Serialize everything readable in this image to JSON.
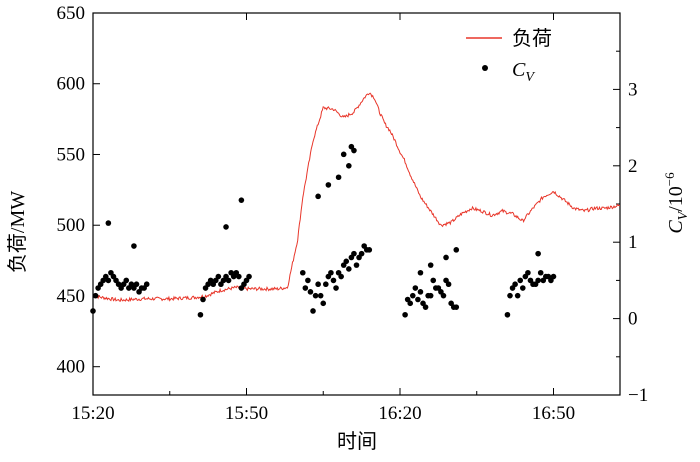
{
  "chart_data": {
    "type": "line",
    "xlabel": "时间",
    "ylabel_left": "负荷/MW",
    "ylabel_right": "C_V/10^-6",
    "ylabel_right_parts": {
      "sym": "C",
      "sub": "V",
      "rest": "/10",
      "sup": "−6"
    },
    "x_ticks": [
      "15:20",
      "15:50",
      "16:20",
      "16:50"
    ],
    "x_tick_minutes": [
      0,
      30,
      60,
      90
    ],
    "xlim_minutes": [
      0,
      103
    ],
    "ylim_left": [
      380,
      650
    ],
    "y_ticks_left": [
      400,
      450,
      500,
      550,
      600,
      650
    ],
    "ylim_right": [
      -1,
      4
    ],
    "y_ticks_right": [
      -1,
      0,
      1,
      2,
      3
    ],
    "legend": {
      "position": "top-right",
      "items": [
        {
          "label": "负荷",
          "marker": "line",
          "color": "#e8362a"
        },
        {
          "label": "C_V",
          "label_parts": {
            "sym": "C",
            "sub": "V"
          },
          "marker": "dot",
          "color": "#000000"
        }
      ]
    },
    "series": [
      {
        "name": "负荷",
        "axis": "left",
        "color": "#e8362a",
        "x_minutes": [
          0,
          5,
          10,
          15,
          20,
          22,
          25,
          28,
          30,
          33,
          36,
          38,
          40,
          41,
          43,
          45,
          47,
          49,
          51,
          53,
          54,
          55,
          56,
          57,
          58,
          59,
          60,
          61,
          62,
          64,
          66,
          68,
          70,
          72,
          74,
          76,
          78,
          80,
          82,
          84,
          86,
          88,
          90,
          92,
          94,
          96,
          98,
          100,
          103
        ],
        "values": [
          450,
          447,
          448,
          448,
          449,
          450,
          454,
          456,
          455,
          455,
          455,
          456,
          490,
          520,
          560,
          583,
          582,
          576,
          580,
          590,
          594,
          590,
          580,
          572,
          567,
          560,
          552,
          545,
          536,
          520,
          510,
          500,
          502,
          508,
          512,
          510,
          507,
          510,
          508,
          503,
          512,
          520,
          524,
          518,
          512,
          510,
          512,
          512,
          514
        ]
      },
      {
        "name": "C_V",
        "axis": "right",
        "color": "#000000",
        "marker": "dot",
        "x_minutes": [
          0,
          0.5,
          1,
          1.5,
          2,
          2.5,
          3,
          3.5,
          4,
          4.5,
          5,
          5.5,
          6,
          6.5,
          7,
          7.5,
          8,
          8.5,
          9,
          9.5,
          10,
          10.5,
          3,
          8,
          21,
          21.5,
          22,
          22.5,
          23,
          23.5,
          24,
          24.5,
          25,
          25.5,
          26,
          26.5,
          27,
          27.5,
          28,
          28.5,
          29,
          29.5,
          30,
          30.5,
          26,
          29,
          41,
          41.5,
          42,
          42.5,
          43,
          43.5,
          44,
          44.5,
          45,
          45.5,
          46,
          46.5,
          47,
          47.5,
          48,
          48.5,
          49,
          49.5,
          50,
          50.5,
          51,
          51.5,
          52,
          52.5,
          53,
          53.5,
          54,
          44,
          46,
          48,
          49,
          50.5,
          51,
          50,
          61,
          61.5,
          62,
          62.5,
          63,
          63.5,
          64,
          64.5,
          65,
          65.5,
          66,
          66.5,
          67,
          67.5,
          68,
          68.5,
          69,
          69.5,
          70,
          70.5,
          71,
          64,
          66,
          69,
          71,
          81,
          81.5,
          82,
          82.5,
          83,
          83.5,
          84,
          84.5,
          85,
          85.5,
          86,
          86.5,
          87,
          87.5,
          88,
          88.5,
          89,
          89.5,
          90,
          87
        ],
        "values": [
          0.1,
          0.3,
          0.4,
          0.45,
          0.5,
          0.55,
          0.5,
          0.6,
          0.55,
          0.5,
          0.45,
          0.4,
          0.45,
          0.5,
          0.4,
          0.45,
          0.4,
          0.45,
          0.35,
          0.4,
          0.4,
          0.45,
          1.25,
          0.95,
          0.05,
          0.25,
          0.4,
          0.45,
          0.5,
          0.45,
          0.5,
          0.55,
          0.45,
          0.5,
          0.55,
          0.5,
          0.6,
          0.55,
          0.6,
          0.55,
          0.4,
          0.45,
          0.5,
          0.55,
          1.2,
          1.55,
          0.6,
          0.4,
          0.5,
          0.35,
          0.1,
          0.3,
          0.45,
          0.3,
          0.2,
          0.45,
          0.55,
          0.6,
          0.5,
          0.4,
          0.6,
          0.55,
          0.7,
          0.75,
          0.65,
          0.8,
          0.85,
          0.7,
          0.8,
          0.85,
          0.95,
          0.9,
          0.9,
          1.6,
          1.75,
          1.85,
          2.15,
          2.25,
          2.2,
          2.0,
          0.05,
          0.25,
          0.2,
          0.3,
          0.4,
          0.25,
          0.35,
          0.2,
          0.15,
          0.3,
          0.3,
          0.5,
          0.4,
          0.4,
          0.35,
          0.3,
          0.5,
          0.45,
          0.2,
          0.15,
          0.15,
          0.6,
          0.7,
          0.8,
          0.9,
          0.05,
          0.3,
          0.4,
          0.45,
          0.3,
          0.5,
          0.4,
          0.55,
          0.6,
          0.5,
          0.45,
          0.45,
          0.5,
          0.6,
          0.5,
          0.55,
          0.55,
          0.5,
          0.55,
          0.85
        ]
      }
    ]
  }
}
